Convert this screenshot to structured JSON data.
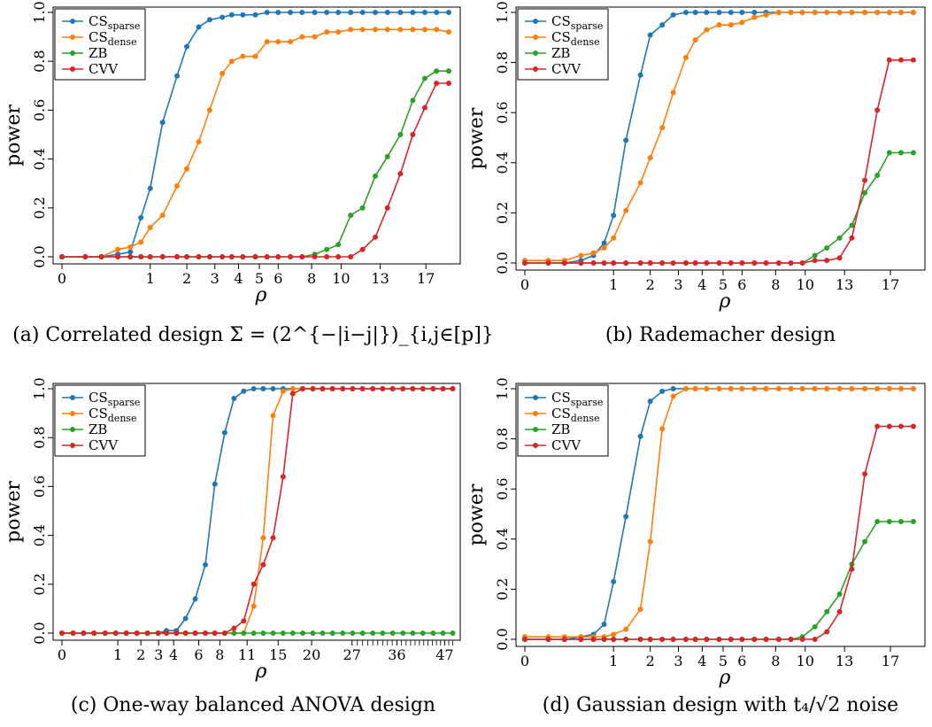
{
  "colors": {
    "CS_sparse": "#1f77b4",
    "CS_dense": "#ff7f0e",
    "ZB": "#2ca02c",
    "CVV": "#d62728"
  },
  "chart_data": [
    {
      "type": "line",
      "caption": "(a) Correlated design Σ = (2^{−|i−j|})_{i,j∈[p]}",
      "xlabel": "ρ",
      "ylabel": "power",
      "xlim": [
        0,
        20
      ],
      "ylim": [
        0,
        1
      ],
      "x_scale": "sqrt",
      "x_ticks": [
        0,
        1,
        2,
        3,
        4,
        5,
        6,
        8,
        10,
        13,
        17
      ],
      "y_ticks": [
        0.0,
        0.2,
        0.4,
        0.6,
        0.8,
        1.0
      ],
      "legend": "top-left",
      "grid": false,
      "x": [
        0,
        0.07,
        0.2,
        0.4,
        0.6,
        0.8,
        1,
        1.3,
        1.7,
        2,
        2.4,
        2.8,
        3.3,
        3.7,
        4.2,
        4.8,
        5.4,
        6,
        6.7,
        7.4,
        8.2,
        9,
        9.8,
        10.7,
        11.6,
        12.6,
        13.6,
        14.7,
        15.8,
        16.9,
        18,
        19.2
      ],
      "series": [
        {
          "name": "CS_sparse",
          "values": [
            0,
            0,
            0,
            0.01,
            0.02,
            0.16,
            0.28,
            0.55,
            0.74,
            0.86,
            0.94,
            0.97,
            0.98,
            0.99,
            0.99,
            0.99,
            1,
            1,
            1,
            1,
            1,
            1,
            1,
            1,
            1,
            1,
            1,
            1,
            1,
            1,
            1,
            1
          ]
        },
        {
          "name": "CS_dense",
          "values": [
            0,
            0,
            0,
            0.03,
            0.04,
            0.06,
            0.12,
            0.17,
            0.29,
            0.36,
            0.47,
            0.6,
            0.75,
            0.8,
            0.82,
            0.82,
            0.88,
            0.88,
            0.88,
            0.9,
            0.9,
            0.92,
            0.92,
            0.93,
            0.93,
            0.93,
            0.93,
            0.93,
            0.93,
            0.93,
            0.93,
            0.92
          ]
        },
        {
          "name": "ZB",
          "values": [
            0,
            0,
            0,
            0,
            0,
            0,
            0,
            0,
            0,
            0,
            0,
            0,
            0,
            0,
            0,
            0,
            0,
            0,
            0,
            0,
            0.01,
            0.03,
            0.05,
            0.17,
            0.2,
            0.33,
            0.41,
            0.5,
            0.64,
            0.73,
            0.76,
            0.76
          ]
        },
        {
          "name": "CVV",
          "values": [
            0,
            0,
            0,
            0,
            0,
            0,
            0,
            0,
            0,
            0,
            0,
            0,
            0,
            0,
            0,
            0,
            0,
            0,
            0,
            0,
            0,
            0,
            0,
            0,
            0.03,
            0.08,
            0.2,
            0.34,
            0.5,
            0.61,
            0.71,
            0.71
          ]
        }
      ]
    },
    {
      "type": "line",
      "caption": "(b) Rademacher design",
      "xlabel": "ρ",
      "ylabel": "power",
      "xlim": [
        0,
        20
      ],
      "ylim": [
        0,
        1
      ],
      "x_scale": "sqrt",
      "x_ticks": [
        0,
        1,
        2,
        3,
        4,
        5,
        6,
        8,
        10,
        13,
        17
      ],
      "y_ticks": [
        0.0,
        0.2,
        0.4,
        0.6,
        0.8,
        1.0
      ],
      "legend": "top-left",
      "grid": false,
      "x": [
        0,
        0.07,
        0.2,
        0.4,
        0.6,
        0.8,
        1,
        1.3,
        1.7,
        2,
        2.4,
        2.8,
        3.3,
        3.7,
        4.2,
        4.8,
        5.4,
        6,
        6.7,
        7.4,
        8.2,
        9,
        9.8,
        10.7,
        11.6,
        12.6,
        13.6,
        14.7,
        15.8,
        16.9,
        18,
        19.2
      ],
      "series": [
        {
          "name": "CS_sparse",
          "values": [
            0,
            0,
            0,
            0.01,
            0.03,
            0.08,
            0.19,
            0.49,
            0.75,
            0.91,
            0.95,
            0.99,
            1,
            1,
            1,
            1,
            1,
            1,
            1,
            1,
            1,
            1,
            1,
            1,
            1,
            1,
            1,
            1,
            1,
            1,
            1,
            1
          ]
        },
        {
          "name": "CS_dense",
          "values": [
            0.01,
            0.01,
            0.01,
            0.03,
            0.04,
            0.06,
            0.1,
            0.21,
            0.32,
            0.42,
            0.54,
            0.68,
            0.82,
            0.89,
            0.93,
            0.95,
            0.95,
            0.96,
            0.98,
            0.99,
            1,
            1,
            1,
            1,
            1,
            1,
            1,
            1,
            1,
            1,
            1,
            1
          ]
        },
        {
          "name": "ZB",
          "values": [
            0,
            0,
            0,
            0,
            0,
            0,
            0,
            0,
            0,
            0,
            0,
            0,
            0,
            0,
            0,
            0,
            0,
            0,
            0,
            0,
            0,
            0,
            0,
            0.03,
            0.06,
            0.1,
            0.15,
            0.28,
            0.35,
            0.44,
            0.44,
            0.44
          ]
        },
        {
          "name": "CVV",
          "values": [
            0,
            0,
            0,
            0,
            0,
            0,
            0,
            0,
            0,
            0,
            0,
            0,
            0,
            0,
            0,
            0,
            0,
            0,
            0,
            0,
            0,
            0,
            0,
            0.01,
            0.01,
            0.02,
            0.1,
            0.33,
            0.61,
            0.81,
            0.81,
            0.81
          ]
        }
      ]
    },
    {
      "type": "line",
      "caption": "(c) One-way balanced ANOVA design",
      "xlabel": "ρ",
      "ylabel": "power",
      "xlim": [
        0,
        50
      ],
      "ylim": [
        0,
        1
      ],
      "x_scale": "sqrt",
      "x_ticks": [
        0,
        1,
        2,
        3,
        4,
        6,
        8,
        11,
        15,
        20,
        27,
        36,
        47
      ],
      "y_ticks": [
        0.0,
        0.2,
        0.4,
        0.6,
        0.8,
        1.0
      ],
      "legend": "top-left",
      "grid": false,
      "x": [
        0,
        0.04,
        0.15,
        0.33,
        0.6,
        0.93,
        1.33,
        1.8,
        2.35,
        2.97,
        3.5,
        4.2,
        4.9,
        5.7,
        6.6,
        7.5,
        8.5,
        9.5,
        10.6,
        11.8,
        13,
        14.3,
        15.7,
        17.1,
        18.6,
        20.2,
        21.8,
        23.5,
        25.3,
        27.1,
        29,
        31,
        33,
        35.1,
        37.3,
        39.5,
        41.8,
        44.2,
        46.6,
        49
      ],
      "series": [
        {
          "name": "CS_sparse",
          "values": [
            0,
            0,
            0,
            0,
            0,
            0,
            0,
            0,
            0,
            0,
            0.01,
            0.01,
            0.06,
            0.14,
            0.28,
            0.61,
            0.82,
            0.96,
            0.99,
            1,
            1,
            1,
            1,
            1,
            1,
            1,
            1,
            1,
            1,
            1,
            1,
            1,
            1,
            1,
            1,
            1,
            1,
            1,
            1,
            1
          ]
        },
        {
          "name": "CS_dense",
          "values": [
            0,
            0,
            0,
            0,
            0,
            0,
            0,
            0,
            0,
            0,
            0,
            0,
            0,
            0,
            0,
            0,
            0,
            0,
            0,
            0.11,
            0.39,
            0.89,
            0.99,
            1,
            1,
            1,
            1,
            1,
            1,
            1,
            1,
            1,
            1,
            1,
            1,
            1,
            1,
            1,
            1,
            1
          ]
        },
        {
          "name": "ZB",
          "values": [
            0,
            0,
            0,
            0,
            0,
            0,
            0,
            0,
            0,
            0,
            0,
            0,
            0,
            0,
            0,
            0,
            0,
            0,
            0,
            0,
            0,
            0,
            0,
            0,
            0,
            0,
            0,
            0,
            0,
            0,
            0,
            0,
            0,
            0,
            0,
            0,
            0,
            0,
            0,
            0
          ]
        },
        {
          "name": "CVV",
          "values": [
            0,
            0,
            0,
            0,
            0,
            0,
            0,
            0,
            0,
            0,
            0,
            0,
            0,
            0,
            0,
            0,
            0,
            0.02,
            0.05,
            0.2,
            0.28,
            0.39,
            0.64,
            0.98,
            1,
            1,
            1,
            1,
            1,
            1,
            1,
            1,
            1,
            1,
            1,
            1,
            1,
            1,
            1,
            1
          ]
        }
      ]
    },
    {
      "type": "line",
      "caption": "(d) Gaussian design with t₄/√2 noise",
      "xlabel": "ρ",
      "ylabel": "power",
      "xlim": [
        0,
        20
      ],
      "ylim": [
        0,
        1
      ],
      "x_scale": "sqrt",
      "x_ticks": [
        0,
        1,
        2,
        3,
        4,
        5,
        6,
        8,
        10,
        13,
        17
      ],
      "y_ticks": [
        0.0,
        0.2,
        0.4,
        0.6,
        0.8,
        1.0
      ],
      "legend": "top-left",
      "grid": false,
      "x": [
        0,
        0.07,
        0.2,
        0.4,
        0.6,
        0.8,
        1,
        1.3,
        1.7,
        2,
        2.4,
        2.8,
        3.3,
        3.7,
        4.2,
        4.8,
        5.4,
        6,
        6.7,
        7.4,
        8.2,
        9,
        9.8,
        10.7,
        11.6,
        12.6,
        13.6,
        14.7,
        15.8,
        16.9,
        18,
        19.2
      ],
      "series": [
        {
          "name": "CS_sparse",
          "values": [
            0,
            0,
            0,
            0.01,
            0.02,
            0.06,
            0.23,
            0.49,
            0.81,
            0.95,
            0.99,
            1,
            1,
            1,
            1,
            1,
            1,
            1,
            1,
            1,
            1,
            1,
            1,
            1,
            1,
            1,
            1,
            1,
            1,
            1,
            1,
            1
          ]
        },
        {
          "name": "CS_dense",
          "values": [
            0.01,
            0.01,
            0.01,
            0.01,
            0.01,
            0.01,
            0.02,
            0.04,
            0.12,
            0.39,
            0.84,
            0.97,
            1,
            1,
            1,
            1,
            1,
            1,
            1,
            1,
            1,
            1,
            1,
            1,
            1,
            1,
            1,
            1,
            1,
            1,
            1,
            1
          ]
        },
        {
          "name": "ZB",
          "values": [
            0,
            0,
            0,
            0,
            0,
            0,
            0,
            0,
            0,
            0,
            0,
            0,
            0,
            0,
            0,
            0,
            0,
            0,
            0,
            0,
            0,
            0,
            0.01,
            0.05,
            0.11,
            0.18,
            0.3,
            0.39,
            0.47,
            0.47,
            0.47,
            0.47
          ]
        },
        {
          "name": "CVV",
          "values": [
            0,
            0,
            0,
            0,
            0,
            0,
            0,
            0,
            0,
            0,
            0,
            0,
            0,
            0,
            0,
            0,
            0,
            0,
            0,
            0,
            0,
            0,
            0,
            0,
            0.03,
            0.11,
            0.28,
            0.66,
            0.85,
            0.85,
            0.85,
            0.85
          ]
        }
      ]
    }
  ]
}
